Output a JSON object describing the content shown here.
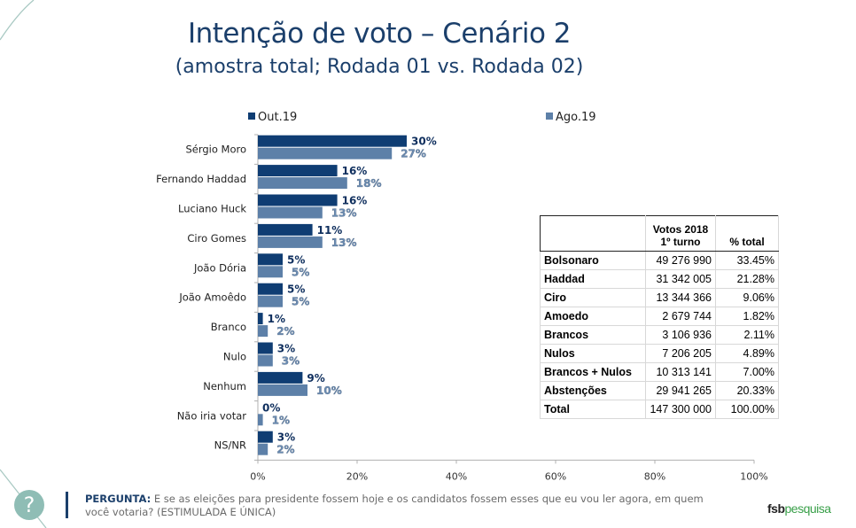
{
  "header": {
    "title": "Intenção de voto – Cenário 2",
    "subtitle": "(amostra total; Rodada 01 vs. Rodada 02)"
  },
  "chart_data": {
    "type": "bar",
    "orientation": "horizontal",
    "title": "Intenção de voto – Cenário 2",
    "subtitle": "(amostra total; Rodada 01 vs. Rodada 02)",
    "categories": [
      "Sérgio Moro",
      "Fernando Haddad",
      "Luciano Huck",
      "Ciro Gomes",
      "João Dória",
      "João Amoêdo",
      "Branco",
      "Nulo",
      "Nenhum",
      "Não iria votar",
      "NS/NR"
    ],
    "series": [
      {
        "name": "Out.19",
        "color": "#0f3d73",
        "values": [
          30,
          16,
          16,
          11,
          5,
          5,
          1,
          3,
          9,
          0,
          3
        ]
      },
      {
        "name": "Ago.19",
        "color": "#5d80a8",
        "values": [
          27,
          18,
          13,
          13,
          5,
          5,
          2,
          3,
          10,
          1,
          2
        ]
      }
    ],
    "xlim": [
      0,
      100
    ],
    "xticks": [
      "0%",
      "20%",
      "40%",
      "60%",
      "80%",
      "100%"
    ],
    "xtick_values": [
      0,
      20,
      40,
      60,
      80,
      100
    ],
    "value_suffix": "%",
    "legend_position": "top",
    "grid": false
  },
  "results_table": {
    "headers": [
      "",
      "Votos 2018\n1º turno",
      "% total"
    ],
    "header_line1": "Votos 2018",
    "header_line2": "1º turno",
    "header_pct": "% total",
    "rows": [
      {
        "label": "Bolsonaro",
        "votes": "49 276 990",
        "pct": "33.45%"
      },
      {
        "label": "Haddad",
        "votes": "31 342 005",
        "pct": "21.28%"
      },
      {
        "label": "Ciro",
        "votes": "13 344 366",
        "pct": "9.06%"
      },
      {
        "label": "Amoedo",
        "votes": "2 679 744",
        "pct": "1.82%"
      },
      {
        "label": "Brancos",
        "votes": "3 106 936",
        "pct": "2.11%"
      },
      {
        "label": "Nulos",
        "votes": "7 206 205",
        "pct": "4.89%"
      },
      {
        "label": "Brancos + Nulos",
        "votes": "10 313 141",
        "pct": "7.00%"
      },
      {
        "label": "Abstenções",
        "votes": "29 941 265",
        "pct": "20.33%"
      },
      {
        "label": "Total",
        "votes": "147 300 000",
        "pct": "100.00%"
      }
    ]
  },
  "footer": {
    "question_label": "PERGUNTA:",
    "question_text": " E se as eleições para presidente fossem hoje e os candidatos fossem esses que eu vou ler agora, em quem você votaria? (ESTIMULADA E ÚNICA)",
    "help_icon": "?",
    "logo_part1": "fsb",
    "logo_part2": "pesquisa"
  }
}
